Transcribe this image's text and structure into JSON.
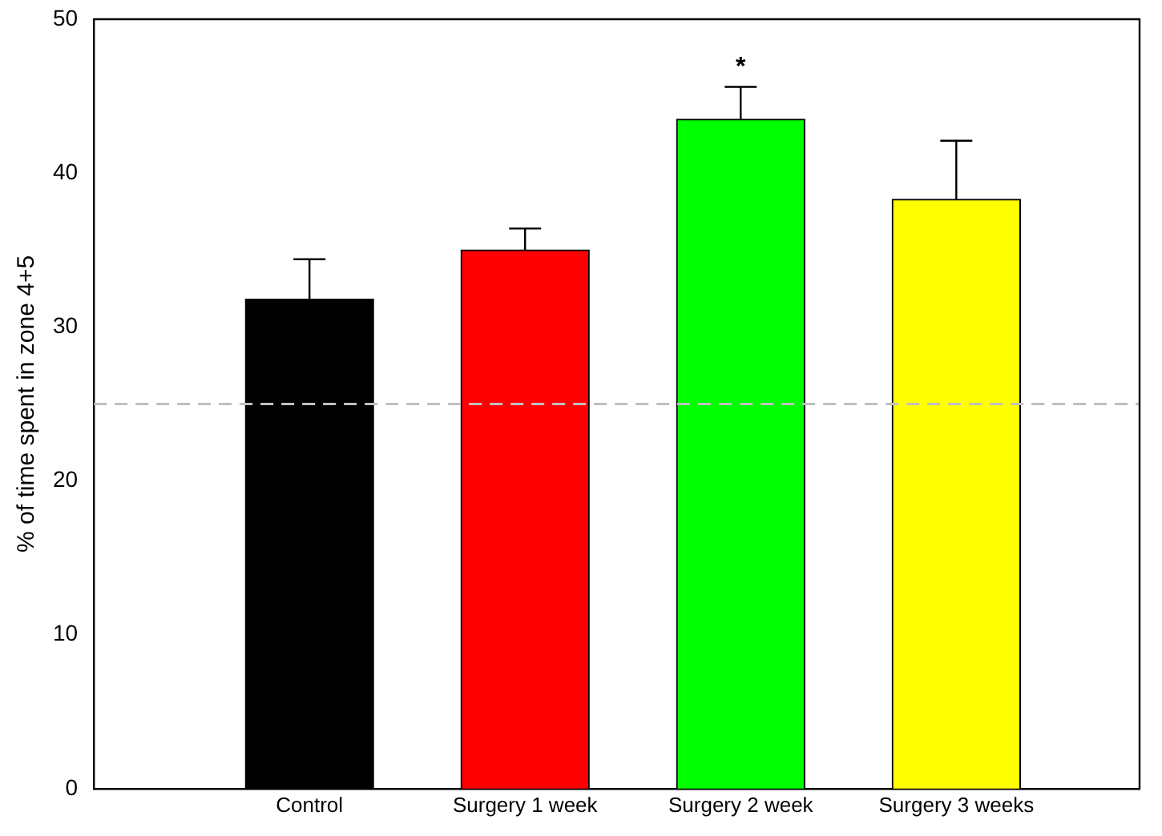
{
  "chart_data": {
    "type": "bar",
    "ylabel": "% of time spent in zone 4+5",
    "categories": [
      "Control",
      "Surgery 1 week",
      "Surgery 2 week",
      "Surgery 3 weeks"
    ],
    "values": [
      31.8,
      35.0,
      43.5,
      38.3
    ],
    "colors": [
      "#000000",
      "#ff0000",
      "#00ff00",
      "#ffff00"
    ],
    "errors": [
      2.6,
      1.4,
      2.1,
      3.8
    ],
    "ylim": [
      0,
      50
    ],
    "yticks": [
      0,
      10,
      20,
      30,
      40,
      50
    ],
    "grid": false,
    "legend": false,
    "ref_lines": [
      {
        "axis": "y",
        "value": 25,
        "color": "#c0c0c0",
        "line_style": "dashed"
      }
    ],
    "annotations": [
      "*"
    ]
  }
}
